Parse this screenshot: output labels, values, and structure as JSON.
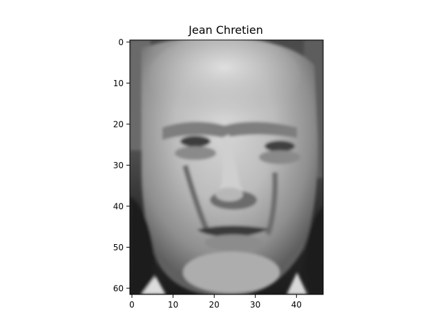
{
  "title": "Jean Chretien",
  "colormap": "gray",
  "image": {
    "columns": 47,
    "rows": 62,
    "pixel_grid_shown": "grayscale portrait of a man's face"
  },
  "axes": {
    "x_ticks": [
      "0",
      "10",
      "20",
      "30",
      "40"
    ],
    "y_ticks": [
      "0",
      "10",
      "20",
      "30",
      "40",
      "50",
      "60"
    ],
    "x_range": [
      -0.5,
      46.5
    ],
    "y_range": [
      61.5,
      -0.5
    ],
    "grid": false
  }
}
